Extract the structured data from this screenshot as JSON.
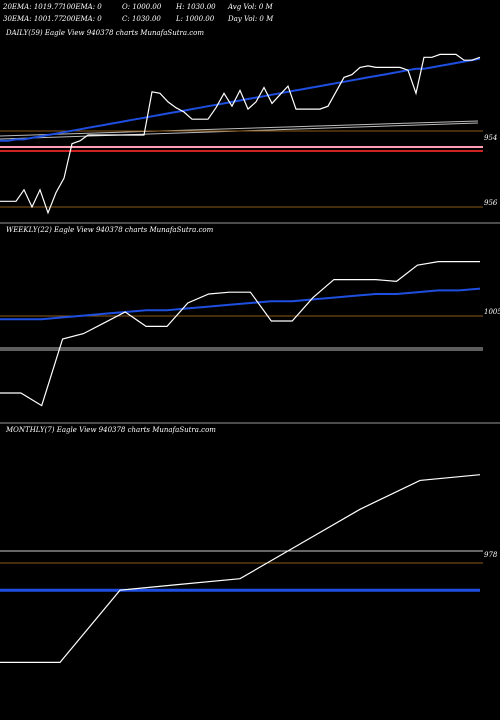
{
  "header": {
    "row1": [
      "20EMA: 1019.77",
      "100EMA: 0",
      "O: 1000.00",
      "H: 1030.00",
      "Avg Vol: 0  M"
    ],
    "row2": [
      "30EMA: 1001.77",
      "200EMA: 0",
      "C: 1030.00",
      "L: 1000.00",
      "Day Vol: 0  M"
    ]
  },
  "colors": {
    "background": "#000000",
    "price": "#ffffff",
    "ema_blue": "#1f4fe0",
    "ema_grey": "#bbbbbb",
    "pink_line": "#ff9db5",
    "red_line": "#cc2222",
    "level_line": "#8a5a1a",
    "separator": "#999999"
  },
  "chart_data": [
    {
      "type": "line",
      "title": "DAILY(59) Eagle   View  940378 charts MunafaSutra.com",
      "yticks": [
        "954",
        "956"
      ],
      "price": [
        988,
        988,
        988,
        996,
        984,
        996,
        980,
        994,
        1004,
        1028,
        1030,
        1034,
        1034,
        1034,
        1034,
        1034,
        1034,
        1034,
        1034,
        1064,
        1063,
        1057,
        1053,
        1050,
        1045,
        1045,
        1045,
        1053,
        1063,
        1054,
        1065,
        1052,
        1057,
        1067,
        1056,
        1062,
        1068,
        1052,
        1052,
        1052,
        1052,
        1054,
        1064,
        1074,
        1076,
        1081,
        1082,
        1081,
        1081,
        1081,
        1081,
        1079,
        1063,
        1088,
        1088,
        1090,
        1090,
        1090,
        1086,
        1086,
        1088
      ],
      "ema_blue": [
        1030,
        1030,
        1031,
        1031,
        1032,
        1033,
        1034,
        1035,
        1036,
        1037,
        1038,
        1039,
        1040,
        1041,
        1042,
        1043,
        1044,
        1045,
        1046,
        1047,
        1048,
        1049,
        1050,
        1051,
        1052,
        1053,
        1054,
        1055,
        1056,
        1057,
        1058,
        1059,
        1060,
        1061,
        1062,
        1063,
        1064,
        1065,
        1066,
        1067,
        1068,
        1069,
        1070,
        1071,
        1072,
        1073,
        1074,
        1075,
        1076,
        1077,
        1078,
        1079,
        1080,
        1080,
        1081,
        1082,
        1083,
        1084,
        1085,
        1086,
        1087
      ]
    },
    {
      "type": "line",
      "title": "WEEKLY(22) Eagle   View  940378 charts MunafaSutra.com",
      "yticks": [
        "1005"
      ],
      "price": [
        975,
        975,
        968,
        1005,
        1008,
        1014,
        1020,
        1012,
        1012,
        1025,
        1030,
        1031,
        1031,
        1015,
        1015,
        1028,
        1038,
        1038,
        1038,
        1037,
        1046,
        1048,
        1048,
        1048
      ],
      "ema_blue": [
        1016,
        1016,
        1016,
        1017,
        1018,
        1019,
        1020,
        1021,
        1021,
        1022,
        1023,
        1024,
        1025,
        1026,
        1026,
        1027,
        1028,
        1029,
        1030,
        1030,
        1031,
        1032,
        1032,
        1033
      ]
    },
    {
      "type": "line",
      "title": "MONTHLY(7) Eagle   View  940378 charts MunafaSutra.com",
      "yticks": [
        "978"
      ],
      "price": [
        953,
        953,
        978,
        980,
        982,
        994,
        1006,
        1016,
        1018
      ],
      "ema_blue": [
        978,
        978,
        978,
        978,
        978,
        978,
        978,
        978,
        978
      ]
    }
  ]
}
